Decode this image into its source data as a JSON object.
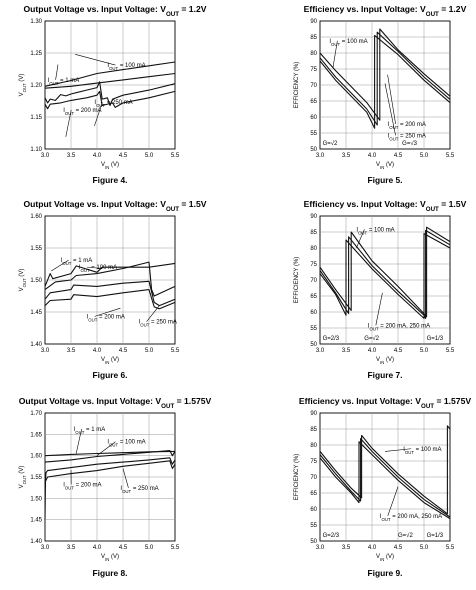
{
  "chart_data": [
    {
      "type": "line",
      "title": {
        "pre": "Output Voltage vs. Input Voltage: V",
        "sub": "OUT",
        "post": " = 1.2V"
      },
      "caption": "Figure 4.",
      "xlabel": {
        "pre": "V",
        "sub": "IN",
        "post": " (V)"
      },
      "ylabel": {
        "pre": "V",
        "sub": "OUT",
        "post": " (V)"
      },
      "xlim": [
        3.0,
        5.5
      ],
      "ylim": [
        1.1,
        1.3
      ],
      "xticks": [
        "3.0",
        "3.5",
        "4.0",
        "4.5",
        "5.0",
        "5.5"
      ],
      "yticks": [
        "1.10",
        "1.15",
        "1.20",
        "1.25",
        "1.30"
      ],
      "grid": true,
      "annotations": [
        {
          "pre": "I",
          "sub": "OUT",
          "post": " = 100 mA",
          "ax": 3.58,
          "ay": 1.248,
          "tx": 4.2,
          "ty": 1.228
        },
        {
          "pre": "I",
          "sub": "OUT",
          "post": " = 1 mA",
          "ax": 3.25,
          "ay": 1.232,
          "tx": 3.05,
          "ty": 1.205
        },
        {
          "pre": "I",
          "sub": "OUT",
          "post": " = 250 mA",
          "ax": 3.95,
          "ay": 1.136,
          "tx": 3.95,
          "ty": 1.17
        },
        {
          "pre": "I",
          "sub": "OUT",
          "post": " = 200 mA",
          "ax": 3.4,
          "ay": 1.119,
          "tx": 3.35,
          "ty": 1.158
        }
      ],
      "series": [
        {
          "x": [
            3.0,
            3.5,
            4.0,
            4.5,
            5.0,
            5.5
          ],
          "y": [
            1.195,
            1.198,
            1.203,
            1.208,
            1.213,
            1.218
          ]
        },
        {
          "x": [
            3.0,
            3.5,
            4.0,
            4.5,
            5.0,
            5.5
          ],
          "y": [
            1.198,
            1.207,
            1.218,
            1.224,
            1.23,
            1.236
          ]
        },
        {
          "x": [
            3.0,
            3.05,
            3.1,
            3.2,
            3.3,
            3.4,
            3.5,
            3.6,
            3.8,
            4.0,
            4.05,
            4.1,
            4.2,
            4.25,
            4.3,
            4.5,
            5.0,
            5.5
          ],
          "y": [
            1.18,
            1.172,
            1.178,
            1.176,
            1.185,
            1.183,
            1.186,
            1.188,
            1.192,
            1.196,
            1.205,
            1.178,
            1.18,
            1.168,
            1.178,
            1.184,
            1.192,
            1.202
          ]
        },
        {
          "x": [
            3.0,
            3.05,
            3.1,
            3.3,
            3.5,
            3.8,
            4.0,
            4.05,
            4.1,
            4.3,
            4.35,
            4.5,
            5.0,
            5.5
          ],
          "y": [
            1.17,
            1.163,
            1.17,
            1.172,
            1.176,
            1.18,
            1.184,
            1.19,
            1.168,
            1.172,
            1.165,
            1.172,
            1.18,
            1.19
          ]
        }
      ]
    },
    {
      "type": "line",
      "title": {
        "pre": "Efficiency vs. Input Voltage: V",
        "sub": "OUT",
        "post": " = 1.2V"
      },
      "caption": "Figure 5.",
      "xlabel": {
        "pre": "V",
        "sub": "IN",
        "post": " (V)"
      },
      "ylabel": {
        "pre": "EFFICIENCY (%)",
        "sub": "",
        "post": ""
      },
      "xlim": [
        3.0,
        5.5
      ],
      "ylim": [
        50,
        90
      ],
      "xticks": [
        "3.0",
        "3.5",
        "4.0",
        "4.5",
        "5.0",
        "5.5"
      ],
      "yticks": [
        "50",
        "55",
        "60",
        "65",
        "70",
        "75",
        "80",
        "85",
        "90"
      ],
      "grid": true,
      "labels": [
        {
          "text": "G=√2",
          "x": 3.05,
          "y": 51.2
        },
        {
          "text": "G=√3",
          "x": 4.58,
          "y": 51.2
        }
      ],
      "annotations": [
        {
          "pre": "I",
          "sub": "OUT",
          "post": " = 100 mA",
          "ax": 3.25,
          "ay": 75.5,
          "tx": 3.18,
          "ty": 83.2
        },
        {
          "pre": "I",
          "sub": "OUT",
          "post": " = 200 mA",
          "ax": 4.3,
          "ay": 73.2,
          "tx": 4.3,
          "ty": 57.2
        },
        {
          "pre": "I",
          "sub": "OUT",
          "post": " = 250 mA",
          "ax": 4.25,
          "ay": 70.5,
          "tx": 4.3,
          "ty": 53.6
        }
      ],
      "series": [
        {
          "x": [
            3.0,
            3.3,
            3.6,
            3.9,
            4.15,
            4.15,
            4.5,
            5.0,
            5.5
          ],
          "y": [
            80,
            74.5,
            69.5,
            64.5,
            59,
            87.5,
            81,
            73.5,
            66.5
          ]
        },
        {
          "x": [
            3.0,
            3.3,
            3.6,
            3.9,
            4.1,
            4.1,
            4.5,
            5.0,
            5.5
          ],
          "y": [
            78.5,
            72.5,
            67.5,
            62.5,
            57.5,
            86.5,
            80.5,
            72.5,
            65.5
          ]
        },
        {
          "x": [
            3.0,
            3.3,
            3.6,
            3.9,
            4.05,
            4.05,
            4.5,
            5.0,
            5.5
          ],
          "y": [
            77.5,
            71.5,
            66.5,
            61.5,
            56.5,
            85.5,
            79.5,
            71.5,
            64.5
          ]
        }
      ]
    },
    {
      "type": "line",
      "title": {
        "pre": "Output Voltage vs. Input Voltage: V",
        "sub": "OUT",
        "post": " = 1.5V"
      },
      "caption": "Figure 6.",
      "xlabel": {
        "pre": "V",
        "sub": "IN",
        "post": " (V)"
      },
      "ylabel": {
        "pre": "V",
        "sub": "OUT",
        "post": " (V)"
      },
      "xlim": [
        3.0,
        5.5
      ],
      "ylim": [
        1.4,
        1.6
      ],
      "xticks": [
        "3.0",
        "3.5",
        "4.0",
        "4.5",
        "5.0",
        "5.5"
      ],
      "yticks": [
        "1.40",
        "1.45",
        "1.50",
        "1.55",
        "1.60"
      ],
      "grid": true,
      "annotations": [
        {
          "pre": "I",
          "sub": "OUT",
          "post": " = 1 mA",
          "ax": 3.12,
          "ay": 1.514,
          "tx": 3.3,
          "ty": 1.528
        },
        {
          "pre": "I",
          "sub": "OUT",
          "post": " = 100 mA",
          "ax": 4.1,
          "ay": 1.518,
          "tx": 3.65,
          "ty": 1.517
        },
        {
          "pre": "I",
          "sub": "OUT",
          "post": " = 200 mA",
          "ax": 4.45,
          "ay": 1.456,
          "tx": 3.8,
          "ty": 1.44
        },
        {
          "pre": "I",
          "sub": "OUT",
          "post": " = 250 mA",
          "ax": 5.2,
          "ay": 1.46,
          "tx": 4.8,
          "ty": 1.432
        }
      ],
      "series": [
        {
          "x": [
            3.0,
            3.1,
            3.15,
            3.5,
            3.6,
            4.0,
            4.1,
            5.0,
            5.5
          ],
          "y": [
            1.49,
            1.51,
            1.502,
            1.51,
            1.522,
            1.512,
            1.52,
            1.52,
            1.526
          ]
        },
        {
          "x": [
            3.0,
            3.2,
            3.5,
            3.6,
            4.0,
            4.5,
            5.0,
            5.05,
            5.1,
            5.5
          ],
          "y": [
            1.485,
            1.497,
            1.5,
            1.507,
            1.51,
            1.518,
            1.528,
            1.485,
            1.475,
            1.49
          ]
        },
        {
          "x": [
            3.0,
            3.1,
            3.5,
            3.55,
            4.0,
            4.5,
            5.0,
            5.1,
            5.2,
            5.5
          ],
          "y": [
            1.47,
            1.48,
            1.485,
            1.492,
            1.49,
            1.495,
            1.498,
            1.465,
            1.46,
            1.47
          ]
        },
        {
          "x": [
            3.0,
            3.1,
            3.5,
            3.55,
            4.0,
            4.5,
            5.0,
            5.1,
            5.2,
            5.5
          ],
          "y": [
            1.46,
            1.468,
            1.47,
            1.477,
            1.474,
            1.48,
            1.485,
            1.458,
            1.455,
            1.465
          ]
        }
      ]
    },
    {
      "type": "line",
      "title": {
        "pre": "Efficiency vs. Input Voltage: V",
        "sub": "OUT",
        "post": " = 1.5V"
      },
      "caption": "Figure 7.",
      "xlabel": {
        "pre": "V",
        "sub": "IN",
        "post": " (V)"
      },
      "ylabel": {
        "pre": "EFFICIENCY (%)",
        "sub": "",
        "post": ""
      },
      "xlim": [
        3.0,
        5.5
      ],
      "ylim": [
        50,
        90
      ],
      "xticks": [
        "3.0",
        "3.5",
        "4.0",
        "4.5",
        "5.0",
        "5.5"
      ],
      "yticks": [
        "50",
        "55",
        "60",
        "65",
        "70",
        "75",
        "80",
        "85",
        "90"
      ],
      "grid": true,
      "labels": [
        {
          "text": "G=2/3",
          "x": 3.05,
          "y": 51.2
        },
        {
          "text": "G=√2",
          "x": 3.85,
          "y": 51.2
        },
        {
          "text": "G=1/3",
          "x": 5.05,
          "y": 51.2
        }
      ],
      "annotations": [
        {
          "pre": "I",
          "sub": "OUT",
          "post": " = 100 mA",
          "ax": 3.7,
          "ay": 80,
          "tx": 3.7,
          "ty": 85.2
        },
        {
          "pre": "I",
          "sub": "OUT",
          "post": " = 200 mA, 250 mA",
          "ax": 4.2,
          "ay": 66,
          "tx": 3.92,
          "ty": 55.2
        }
      ],
      "series": [
        {
          "x": [
            3.0,
            3.3,
            3.6,
            3.6,
            4.0,
            4.5,
            5.0,
            5.05,
            5.05,
            5.5
          ],
          "y": [
            74,
            67,
            60.5,
            85,
            76,
            68,
            59.5,
            58.5,
            86.5,
            82
          ]
        },
        {
          "x": [
            3.0,
            3.3,
            3.55,
            3.55,
            4.0,
            4.5,
            5.0,
            5.03,
            5.03,
            5.5
          ],
          "y": [
            73,
            66,
            59.5,
            83.5,
            74.5,
            66.5,
            59,
            58,
            85.5,
            81
          ]
        },
        {
          "x": [
            3.0,
            3.3,
            3.5,
            3.5,
            4.0,
            4.5,
            5.0,
            5.0,
            5.5
          ],
          "y": [
            72,
            65.5,
            59,
            82.5,
            73.5,
            65.5,
            58,
            84.5,
            80
          ]
        }
      ]
    },
    {
      "type": "line",
      "title": {
        "pre": "Output Voltage vs. Input Voltage: V",
        "sub": "OUT",
        "post": " = 1.575V"
      },
      "caption": "Figure 8.",
      "xlabel": {
        "pre": "V",
        "sub": "IN",
        "post": " (V)"
      },
      "ylabel": {
        "pre": "V",
        "sub": "OUT",
        "post": " (V)"
      },
      "xlim": [
        3.0,
        5.5
      ],
      "ylim": [
        1.4,
        1.7
      ],
      "xticks": [
        "3.0",
        "3.5",
        "4.0",
        "4.5",
        "5.0",
        "5.5"
      ],
      "yticks": [
        "1.40",
        "1.45",
        "1.50",
        "1.55",
        "1.60",
        "1.65",
        "1.70"
      ],
      "grid": true,
      "annotations": [
        {
          "pre": "I",
          "sub": "OUT",
          "post": " = 1 mA",
          "ax": 3.6,
          "ay": 1.605,
          "tx": 3.55,
          "ty": 1.658
        },
        {
          "pre": "I",
          "sub": "OUT",
          "post": " = 100 mA",
          "ax": 4.0,
          "ay": 1.6,
          "tx": 4.2,
          "ty": 1.628
        },
        {
          "pre": "I",
          "sub": "OUT",
          "post": " = 200 mA",
          "ax": 3.5,
          "ay": 1.566,
          "tx": 3.35,
          "ty": 1.528
        },
        {
          "pre": "I",
          "sub": "OUT",
          "post": " = 250 mA",
          "ax": 4.5,
          "ay": 1.57,
          "tx": 4.45,
          "ty": 1.52
        }
      ],
      "series": [
        {
          "x": [
            3.0,
            3.5,
            4.0,
            4.5,
            5.0,
            5.5
          ],
          "y": [
            1.6,
            1.603,
            1.605,
            1.607,
            1.609,
            1.61
          ]
        },
        {
          "x": [
            3.0,
            3.5,
            4.0,
            4.5,
            5.0,
            5.4,
            5.45,
            5.5
          ],
          "y": [
            1.585,
            1.59,
            1.598,
            1.603,
            1.608,
            1.612,
            1.6,
            1.61
          ]
        },
        {
          "x": [
            3.0,
            3.02,
            3.05,
            3.5,
            4.0,
            4.5,
            5.0,
            5.4,
            5.45,
            5.5
          ],
          "y": [
            1.53,
            1.56,
            1.565,
            1.572,
            1.58,
            1.585,
            1.59,
            1.595,
            1.58,
            1.59
          ]
        },
        {
          "x": [
            3.0,
            3.01,
            3.05,
            3.5,
            4.0,
            4.5,
            5.0,
            5.4,
            5.45,
            5.5
          ],
          "y": [
            1.45,
            1.54,
            1.55,
            1.558,
            1.565,
            1.575,
            1.582,
            1.588,
            1.57,
            1.58
          ]
        }
      ]
    },
    {
      "type": "line",
      "title": {
        "pre": "Efficiency vs. Input Voltage: V",
        "sub": "OUT",
        "post": " = 1.575V"
      },
      "caption": "Figure 9.",
      "xlabel": {
        "pre": "V",
        "sub": "IN",
        "post": " (V)"
      },
      "ylabel": {
        "pre": "EFFICIENCY (%)",
        "sub": "",
        "post": ""
      },
      "xlim": [
        3.0,
        5.5
      ],
      "ylim": [
        50,
        90
      ],
      "xticks": [
        "3.0",
        "3.5",
        "4.0",
        "4.5",
        "5.0",
        "5.5"
      ],
      "yticks": [
        "50",
        "55",
        "60",
        "65",
        "70",
        "75",
        "80",
        "85",
        "90"
      ],
      "grid": true,
      "labels": [
        {
          "text": "G=2/3",
          "x": 3.05,
          "y": 51.2
        },
        {
          "text": "G=√2",
          "x": 4.5,
          "y": 51.2
        },
        {
          "text": "G=1/3",
          "x": 5.05,
          "y": 51.2
        }
      ],
      "annotations": [
        {
          "pre": "I",
          "sub": "OUT",
          "post": " = 100 mA",
          "ax": 4.25,
          "ay": 78,
          "tx": 4.6,
          "ty": 78.2
        },
        {
          "pre": "I",
          "sub": "OUT",
          "post": " = 200 mA, 250 mA",
          "ax": 4.5,
          "ay": 67,
          "tx": 4.15,
          "ty": 57.2
        }
      ],
      "series": [
        {
          "x": [
            3.0,
            3.3,
            3.6,
            3.8,
            3.8,
            4.0,
            4.5,
            5.0,
            5.45,
            5.45,
            5.5
          ],
          "y": [
            78,
            72,
            66.5,
            63.5,
            83,
            79,
            71,
            64,
            58.5,
            86,
            85
          ]
        },
        {
          "x": [
            3.0,
            3.3,
            3.6,
            3.78,
            3.78,
            4.0,
            4.5,
            5.0,
            5.5
          ],
          "y": [
            77,
            71,
            65.5,
            62.5,
            82,
            78,
            70,
            63,
            57.5
          ]
        },
        {
          "x": [
            3.0,
            3.3,
            3.6,
            3.75,
            3.75,
            4.0,
            4.5,
            5.0,
            5.5
          ],
          "y": [
            76,
            70,
            65,
            62,
            81,
            77,
            69,
            62,
            57
          ]
        }
      ]
    }
  ]
}
